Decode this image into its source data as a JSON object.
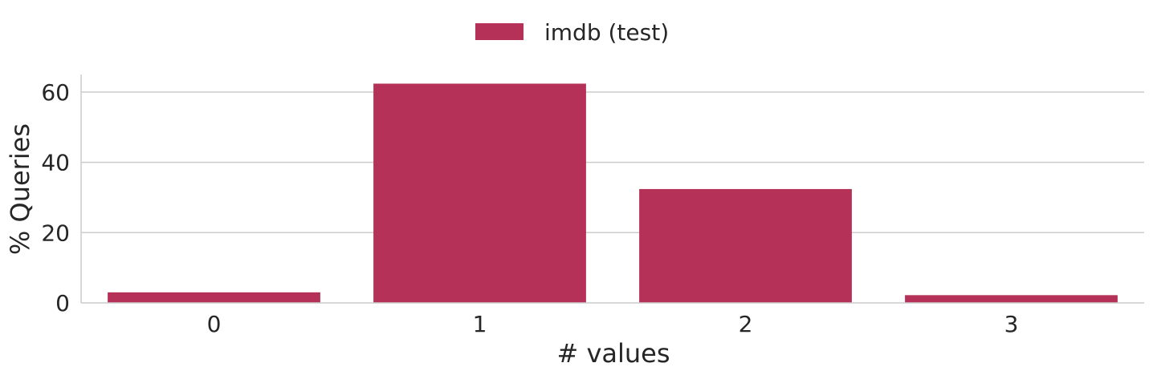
{
  "chart_data": {
    "type": "bar",
    "categories": [
      "0",
      "1",
      "2",
      "3"
    ],
    "series": [
      {
        "name": "imdb (test)",
        "values": [
          3.0,
          62.4,
          32.4,
          2.2
        ],
        "color": "#b53158"
      }
    ],
    "xlabel": "# values",
    "ylabel": "% Queries",
    "ylim": [
      0,
      65
    ],
    "yticks": [
      0,
      20,
      40,
      60
    ],
    "grid": "horizontal",
    "legend_position": "top-center"
  }
}
